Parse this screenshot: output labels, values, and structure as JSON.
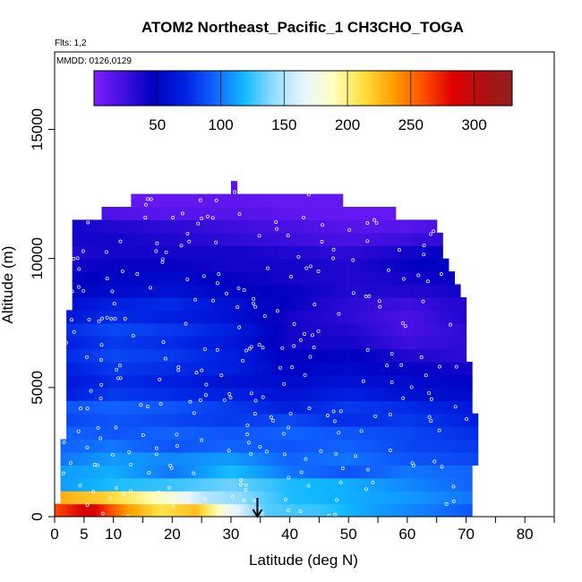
{
  "chart_data": {
    "type": "heatmap",
    "title": "ATOM2 Northeast_Pacific_1 CH3CHO_TOGA",
    "flights_note": "Flts: 1,2",
    "dates_note": "MMDD: 0126,0129",
    "xlabel": "Latitude (deg N)",
    "ylabel": "Altitude (m)",
    "xlim": [
      0,
      85
    ],
    "ylim": [
      0,
      18000
    ],
    "x_ticks": [
      0,
      5,
      10,
      20,
      30,
      40,
      50,
      60,
      70,
      80
    ],
    "x_minor_ticks": [
      15,
      25,
      35,
      45,
      55,
      65,
      75,
      85
    ],
    "y_ticks": [
      0,
      5000,
      10000,
      15000
    ],
    "colorbar": {
      "range": [
        0,
        330
      ],
      "ticks": [
        50,
        100,
        150,
        200,
        250,
        300
      ],
      "colors": [
        "#7f1fff",
        "#3f0fdf",
        "#0000c0",
        "#0020e0",
        "#1060ff",
        "#10b8ff",
        "#90dcff",
        "#e8f4ff",
        "#ffffc0",
        "#ffe040",
        "#ffa000",
        "#ff5000",
        "#e00000",
        "#b01010",
        "#902020"
      ]
    },
    "marker": {
      "latitude": 34.5,
      "label": ""
    },
    "altitude_bands": [
      {
        "alt": 250,
        "profile": [
          [
            0,
            260
          ],
          [
            6,
            290
          ],
          [
            12,
            240
          ],
          [
            18,
            210
          ],
          [
            24,
            225
          ],
          [
            30,
            170
          ],
          [
            36,
            130
          ],
          [
            45,
            125
          ],
          [
            55,
            110
          ],
          [
            65,
            100
          ],
          [
            71,
            90
          ]
        ]
      },
      {
        "alt": 750,
        "profile": [
          [
            1,
            230
          ],
          [
            8,
            220
          ],
          [
            14,
            200
          ],
          [
            20,
            180
          ],
          [
            26,
            150
          ],
          [
            32,
            140
          ],
          [
            40,
            120
          ],
          [
            50,
            115
          ],
          [
            60,
            110
          ],
          [
            71,
            100
          ]
        ]
      },
      {
        "alt": 1250,
        "profile": [
          [
            1,
            110
          ],
          [
            10,
            120
          ],
          [
            20,
            125
          ],
          [
            30,
            135
          ],
          [
            40,
            120
          ],
          [
            50,
            115
          ],
          [
            60,
            105
          ],
          [
            71,
            95
          ]
        ]
      },
      {
        "alt": 1750,
        "profile": [
          [
            1,
            110
          ],
          [
            10,
            115
          ],
          [
            20,
            100
          ],
          [
            30,
            120
          ],
          [
            40,
            100
          ],
          [
            50,
            90
          ],
          [
            60,
            100
          ],
          [
            71,
            95
          ]
        ]
      },
      {
        "alt": 2250,
        "profile": [
          [
            1,
            100
          ],
          [
            10,
            110
          ],
          [
            20,
            105
          ],
          [
            30,
            110
          ],
          [
            40,
            95
          ],
          [
            50,
            100
          ],
          [
            60,
            90
          ],
          [
            72,
            85
          ]
        ]
      },
      {
        "alt": 2750,
        "profile": [
          [
            1,
            95
          ],
          [
            10,
            100
          ],
          [
            20,
            90
          ],
          [
            30,
            95
          ],
          [
            40,
            90
          ],
          [
            50,
            95
          ],
          [
            60,
            85
          ],
          [
            72,
            80
          ]
        ]
      },
      {
        "alt": 3250,
        "profile": [
          [
            2,
            95
          ],
          [
            10,
            90
          ],
          [
            20,
            95
          ],
          [
            30,
            90
          ],
          [
            40,
            95
          ],
          [
            50,
            90
          ],
          [
            60,
            85
          ],
          [
            72,
            75
          ]
        ]
      },
      {
        "alt": 3750,
        "profile": [
          [
            2,
            85
          ],
          [
            10,
            90
          ],
          [
            20,
            85
          ],
          [
            30,
            80
          ],
          [
            40,
            85
          ],
          [
            50,
            75
          ],
          [
            60,
            80
          ],
          [
            72,
            70
          ]
        ]
      },
      {
        "alt": 4250,
        "profile": [
          [
            2,
            90
          ],
          [
            10,
            95
          ],
          [
            20,
            90
          ],
          [
            30,
            80
          ],
          [
            40,
            70
          ],
          [
            50,
            80
          ],
          [
            60,
            75
          ],
          [
            71,
            65
          ]
        ]
      },
      {
        "alt": 4750,
        "profile": [
          [
            2,
            70
          ],
          [
            10,
            80
          ],
          [
            20,
            75
          ],
          [
            30,
            70
          ],
          [
            40,
            60
          ],
          [
            50,
            70
          ],
          [
            60,
            60
          ],
          [
            71,
            55
          ]
        ]
      },
      {
        "alt": 5250,
        "profile": [
          [
            2,
            65
          ],
          [
            10,
            75
          ],
          [
            20,
            70
          ],
          [
            30,
            60
          ],
          [
            40,
            55
          ],
          [
            50,
            60
          ],
          [
            60,
            55
          ],
          [
            71,
            50
          ]
        ]
      },
      {
        "alt": 5750,
        "profile": [
          [
            2,
            70
          ],
          [
            10,
            80
          ],
          [
            20,
            75
          ],
          [
            30,
            70
          ],
          [
            40,
            50
          ],
          [
            50,
            55
          ],
          [
            60,
            45
          ],
          [
            71,
            40
          ]
        ]
      },
      {
        "alt": 6250,
        "profile": [
          [
            2,
            75
          ],
          [
            10,
            85
          ],
          [
            20,
            80
          ],
          [
            30,
            70
          ],
          [
            40,
            45
          ],
          [
            50,
            50
          ],
          [
            60,
            35
          ],
          [
            70,
            30
          ]
        ]
      },
      {
        "alt": 6750,
        "profile": [
          [
            2,
            70
          ],
          [
            10,
            80
          ],
          [
            20,
            75
          ],
          [
            30,
            65
          ],
          [
            40,
            40
          ],
          [
            50,
            40
          ],
          [
            60,
            25
          ],
          [
            70,
            30
          ]
        ]
      },
      {
        "alt": 7250,
        "profile": [
          [
            2,
            75
          ],
          [
            10,
            85
          ],
          [
            20,
            80
          ],
          [
            30,
            70
          ],
          [
            40,
            40
          ],
          [
            50,
            35
          ],
          [
            60,
            20
          ],
          [
            70,
            30
          ]
        ]
      },
      {
        "alt": 7750,
        "profile": [
          [
            2,
            65
          ],
          [
            10,
            75
          ],
          [
            20,
            70
          ],
          [
            30,
            60
          ],
          [
            40,
            40
          ],
          [
            50,
            30
          ],
          [
            60,
            20
          ],
          [
            70,
            35
          ]
        ]
      },
      {
        "alt": 8250,
        "profile": [
          [
            3,
            60
          ],
          [
            10,
            70
          ],
          [
            20,
            75
          ],
          [
            30,
            60
          ],
          [
            40,
            45
          ],
          [
            50,
            30
          ],
          [
            60,
            25
          ],
          [
            70,
            35
          ]
        ]
      },
      {
        "alt": 8750,
        "profile": [
          [
            3,
            50
          ],
          [
            10,
            55
          ],
          [
            20,
            60
          ],
          [
            30,
            50
          ],
          [
            40,
            45
          ],
          [
            50,
            35
          ],
          [
            60,
            35
          ],
          [
            69,
            40
          ]
        ]
      },
      {
        "alt": 9250,
        "profile": [
          [
            3,
            45
          ],
          [
            10,
            50
          ],
          [
            20,
            55
          ],
          [
            30,
            45
          ],
          [
            40,
            40
          ],
          [
            50,
            35
          ],
          [
            60,
            40
          ],
          [
            68,
            45
          ]
        ]
      },
      {
        "alt": 9750,
        "profile": [
          [
            3,
            40
          ],
          [
            10,
            45
          ],
          [
            20,
            45
          ],
          [
            30,
            40
          ],
          [
            40,
            40
          ],
          [
            50,
            35
          ],
          [
            60,
            45
          ],
          [
            67,
            50
          ]
        ]
      },
      {
        "alt": 10250,
        "profile": [
          [
            3,
            35
          ],
          [
            10,
            40
          ],
          [
            20,
            40
          ],
          [
            30,
            40
          ],
          [
            40,
            35
          ],
          [
            50,
            30
          ],
          [
            60,
            40
          ],
          [
            66,
            45
          ]
        ]
      },
      {
        "alt": 10750,
        "profile": [
          [
            3,
            40
          ],
          [
            10,
            40
          ],
          [
            20,
            35
          ],
          [
            30,
            30
          ],
          [
            40,
            25
          ],
          [
            50,
            20
          ],
          [
            60,
            25
          ],
          [
            66,
            30
          ]
        ]
      },
      {
        "alt": 11250,
        "profile": [
          [
            3,
            40
          ],
          [
            10,
            35
          ],
          [
            20,
            30
          ],
          [
            30,
            25
          ],
          [
            40,
            20
          ],
          [
            50,
            15
          ],
          [
            60,
            15
          ],
          [
            65,
            20
          ]
        ]
      },
      {
        "alt": 11750,
        "profile": [
          [
            8,
            20
          ],
          [
            15,
            15
          ],
          [
            25,
            15
          ],
          [
            35,
            15
          ],
          [
            45,
            10
          ],
          [
            55,
            10
          ],
          [
            58,
            10
          ]
        ]
      },
      {
        "alt": 12250,
        "profile": [
          [
            13,
            10
          ],
          [
            20,
            10
          ],
          [
            30,
            12
          ],
          [
            40,
            10
          ],
          [
            49,
            10
          ]
        ]
      },
      {
        "alt": 12750,
        "profile": [
          [
            30,
            15
          ],
          [
            31,
            15
          ]
        ]
      }
    ]
  }
}
